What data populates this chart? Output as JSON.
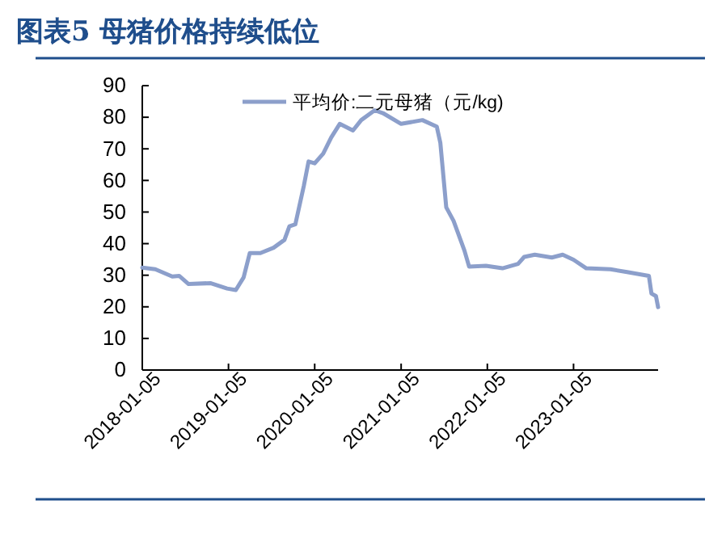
{
  "chart_data": {
    "type": "line",
    "title": "图表5 母猪价格持续低位",
    "x": [
      "2018-01-05",
      "2018-03-01",
      "2018-05-12",
      "2018-06-10",
      "2018-07-20",
      "2018-10-20",
      "2018-12-30",
      "2019-02-05",
      "2019-03-10",
      "2019-04-05",
      "2019-05-20",
      "2019-07-15",
      "2019-08-30",
      "2019-09-20",
      "2019-10-15",
      "2019-11-20",
      "2019-12-10",
      "2020-01-05",
      "2020-02-10",
      "2020-03-15",
      "2020-04-20",
      "2020-06-15",
      "2020-07-20",
      "2020-09-15",
      "2020-10-20",
      "2021-01-05",
      "2021-04-05",
      "2021-06-05",
      "2021-06-20",
      "2021-07-15",
      "2021-08-15",
      "2021-09-30",
      "2021-10-20",
      "2021-12-30",
      "2022-03-10",
      "2022-05-15",
      "2022-06-10",
      "2022-07-25",
      "2022-10-05",
      "2022-11-20",
      "2023-01-05",
      "2023-02-28",
      "2023-06-10",
      "2023-08-20",
      "2023-11-20",
      "2023-12-01",
      "2023-12-20",
      "2023-12-29"
    ],
    "series": [
      {
        "name": "平均价:二元母猪（元/kg)",
        "color": "#8c9fcb",
        "values": [
          32.4,
          31.9,
          29.6,
          29.8,
          27.2,
          27.5,
          25.8,
          25.3,
          29.3,
          37,
          37,
          38.7,
          41.2,
          45.5,
          46.1,
          58.3,
          66,
          65.4,
          68.5,
          73.6,
          77.9,
          75.8,
          79.1,
          82.2,
          81.3,
          77.9,
          79.1,
          77,
          71.9,
          51.5,
          47.2,
          37.8,
          32.7,
          33,
          32.2,
          33.6,
          35.8,
          36.5,
          35.6,
          36.5,
          34.9,
          32.2,
          31.9,
          31,
          29.8,
          24.2,
          23.4,
          19.9
        ]
      }
    ],
    "xlim": [
      "2018-01-05",
      "2023-12-29"
    ],
    "xticks": [
      "2018-01-05",
      "2019-01-05",
      "2020-01-05",
      "2021-01-05",
      "2022-01-05",
      "2023-01-05"
    ],
    "ylim": [
      0,
      90
    ],
    "yticks": [
      0,
      10,
      20,
      30,
      40,
      50,
      60,
      70,
      80,
      90
    ],
    "grid": false,
    "legend": "top",
    "line_style": "solid",
    "marker": "none"
  }
}
